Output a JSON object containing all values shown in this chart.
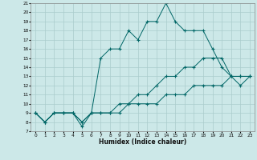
{
  "xlabel": "Humidex (Indice chaleur)",
  "bg_color": "#cce8e8",
  "grid_color": "#aacccc",
  "line_color": "#006666",
  "xlim": [
    -0.5,
    23.5
  ],
  "ylim": [
    7,
    21
  ],
  "xticks": [
    0,
    1,
    2,
    3,
    4,
    5,
    6,
    7,
    8,
    9,
    10,
    11,
    12,
    13,
    14,
    15,
    16,
    17,
    18,
    19,
    20,
    21,
    22,
    23
  ],
  "yticks": [
    7,
    8,
    9,
    10,
    11,
    12,
    13,
    14,
    15,
    16,
    17,
    18,
    19,
    20,
    21
  ],
  "line1_x": [
    0,
    1,
    2,
    3,
    4,
    5,
    6,
    7,
    8,
    9,
    10,
    11,
    12,
    13,
    14,
    15,
    16,
    17,
    18,
    19,
    20,
    21,
    22,
    23
  ],
  "line1_y": [
    9,
    8,
    9,
    9,
    9,
    8,
    9,
    9,
    9,
    9,
    10,
    10,
    10,
    10,
    11,
    11,
    11,
    12,
    12,
    12,
    12,
    13,
    13,
    13
  ],
  "line2_x": [
    0,
    1,
    2,
    3,
    4,
    5,
    6,
    7,
    8,
    9,
    10,
    11,
    12,
    13,
    14,
    15,
    16,
    17,
    18,
    19,
    20,
    21,
    22,
    23
  ],
  "line2_y": [
    9,
    8,
    9,
    9,
    9,
    8,
    9,
    9,
    9,
    10,
    10,
    11,
    11,
    12,
    13,
    13,
    14,
    14,
    15,
    15,
    15,
    13,
    13,
    13
  ],
  "line3_x": [
    0,
    1,
    2,
    3,
    4,
    5,
    6,
    7,
    8,
    9,
    10,
    11,
    12,
    13,
    14,
    15,
    16,
    17,
    18,
    19,
    20,
    21,
    22,
    23
  ],
  "line3_y": [
    9,
    8,
    9,
    9,
    9,
    7.5,
    9,
    15,
    16,
    16,
    18,
    17,
    19,
    19,
    21,
    19,
    18,
    18,
    18,
    16,
    14,
    13,
    12,
    13
  ]
}
